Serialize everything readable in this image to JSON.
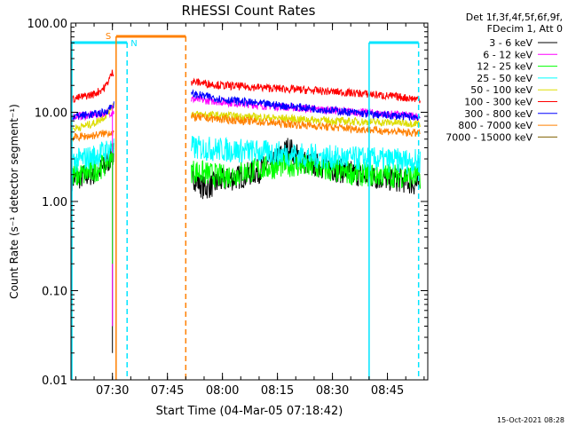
{
  "chart_data": {
    "type": "line",
    "title": "RHESSI Count Rates",
    "xlabel": "Start Time (04-Mar-05 07:18:42)",
    "ylabel": "Count Rate (s⁻¹ detector segment⁻¹)",
    "yscale": "log",
    "ylim": [
      0.01,
      100
    ],
    "xlim": [
      "07:18:42",
      "08:56:00"
    ],
    "grid": false,
    "legend_position": "top-right outside",
    "ytick_labels": [
      "0.01",
      "0.10",
      "1.00",
      "10.00",
      "100.00"
    ],
    "xtick_labels": [
      "07:30",
      "07:45",
      "08:00",
      "08:15",
      "08:30",
      "08:45"
    ],
    "legend_header": [
      "Det 1f,3f,4f,5f,6f,9f,",
      "FDecim 1, Att 0"
    ],
    "annotations": {
      "saa_label": "S",
      "night_label": "N",
      "saa_start": "07:31:00",
      "saa_end": "07:50:00",
      "night_start": "07:34:00",
      "night_end": "08:40:00",
      "night2_end": "08:53:30",
      "saa_color": "#ff8000",
      "night_color": "#00e5ff"
    },
    "series": [
      {
        "name": "3 - 6 keV",
        "color": "#000000",
        "x": [
          "07:19",
          "07:22",
          "07:25",
          "07:28",
          "07:30",
          "07:52",
          "07:55",
          "08:00",
          "08:05",
          "08:10",
          "08:15",
          "08:18",
          "08:22",
          "08:30",
          "08:40",
          "08:50",
          "08:54"
        ],
        "y": [
          1.8,
          1.9,
          2.1,
          2.4,
          3.5,
          1.9,
          1.4,
          1.7,
          1.9,
          2.2,
          3.0,
          4.0,
          2.8,
          2.3,
          1.9,
          1.7,
          1.5
        ]
      },
      {
        "name": "6 - 12 keV",
        "color": "#ff00ff",
        "x": [
          "07:19",
          "07:25",
          "07:30",
          "07:52",
          "08:10",
          "08:30",
          "08:54"
        ],
        "y": [
          9.0,
          9.3,
          10.0,
          14.0,
          12.0,
          10.5,
          9.0
        ]
      },
      {
        "name": "12 - 25 keV",
        "color": "#00ff00",
        "x": [
          "07:19",
          "07:22",
          "07:25",
          "07:28",
          "07:30",
          "07:52",
          "08:00",
          "08:10",
          "08:18",
          "08:22",
          "08:30",
          "08:40",
          "08:54"
        ],
        "y": [
          1.9,
          2.0,
          2.2,
          2.6,
          3.5,
          2.2,
          1.9,
          2.3,
          2.6,
          2.5,
          2.2,
          2.0,
          1.9
        ]
      },
      {
        "name": "25 - 50 keV",
        "color": "#00ffff",
        "x": [
          "07:19",
          "07:25",
          "07:30",
          "07:52",
          "08:10",
          "08:30",
          "08:54"
        ],
        "y": [
          2.8,
          3.2,
          4.0,
          4.0,
          3.6,
          3.1,
          2.8
        ]
      },
      {
        "name": "50 - 100 keV",
        "color": "#dddd00",
        "x": [
          "07:19",
          "07:25",
          "07:28",
          "07:30",
          "07:52",
          "08:10",
          "08:30",
          "08:54"
        ],
        "y": [
          6.5,
          7.5,
          9.0,
          12.0,
          9.5,
          8.8,
          8.0,
          7.5
        ]
      },
      {
        "name": "100 - 300 keV",
        "color": "#ff0000",
        "x": [
          "07:19",
          "07:25",
          "07:28",
          "07:30",
          "07:52",
          "08:00",
          "08:10",
          "08:20",
          "08:30",
          "08:40",
          "08:54"
        ],
        "y": [
          14.0,
          16.0,
          19.0,
          28.0,
          22.0,
          20.0,
          19.0,
          18.0,
          17.0,
          16.0,
          14.0
        ]
      },
      {
        "name": "300 - 800 keV",
        "color": "#0000ff",
        "x": [
          "07:19",
          "07:25",
          "07:28",
          "07:30",
          "07:52",
          "08:00",
          "08:10",
          "08:20",
          "08:30",
          "08:40",
          "08:54"
        ],
        "y": [
          9.0,
          9.5,
          10.0,
          12.0,
          16.0,
          14.0,
          12.5,
          11.5,
          10.5,
          9.5,
          8.8
        ]
      },
      {
        "name": "800 - 7000 keV",
        "color": "#ff8000",
        "x": [
          "07:19",
          "07:25",
          "07:30",
          "07:52",
          "08:10",
          "08:30",
          "08:54"
        ],
        "y": [
          5.2,
          5.5,
          6.0,
          8.8,
          7.8,
          6.8,
          5.8
        ]
      },
      {
        "name": "7000 - 15000 keV",
        "color": "#806000",
        "x": [
          "07:19",
          "07:30"
        ],
        "y": [
          1.8,
          1.8
        ]
      }
    ]
  },
  "footer_timestamp": "15-Oct-2021 08:28"
}
